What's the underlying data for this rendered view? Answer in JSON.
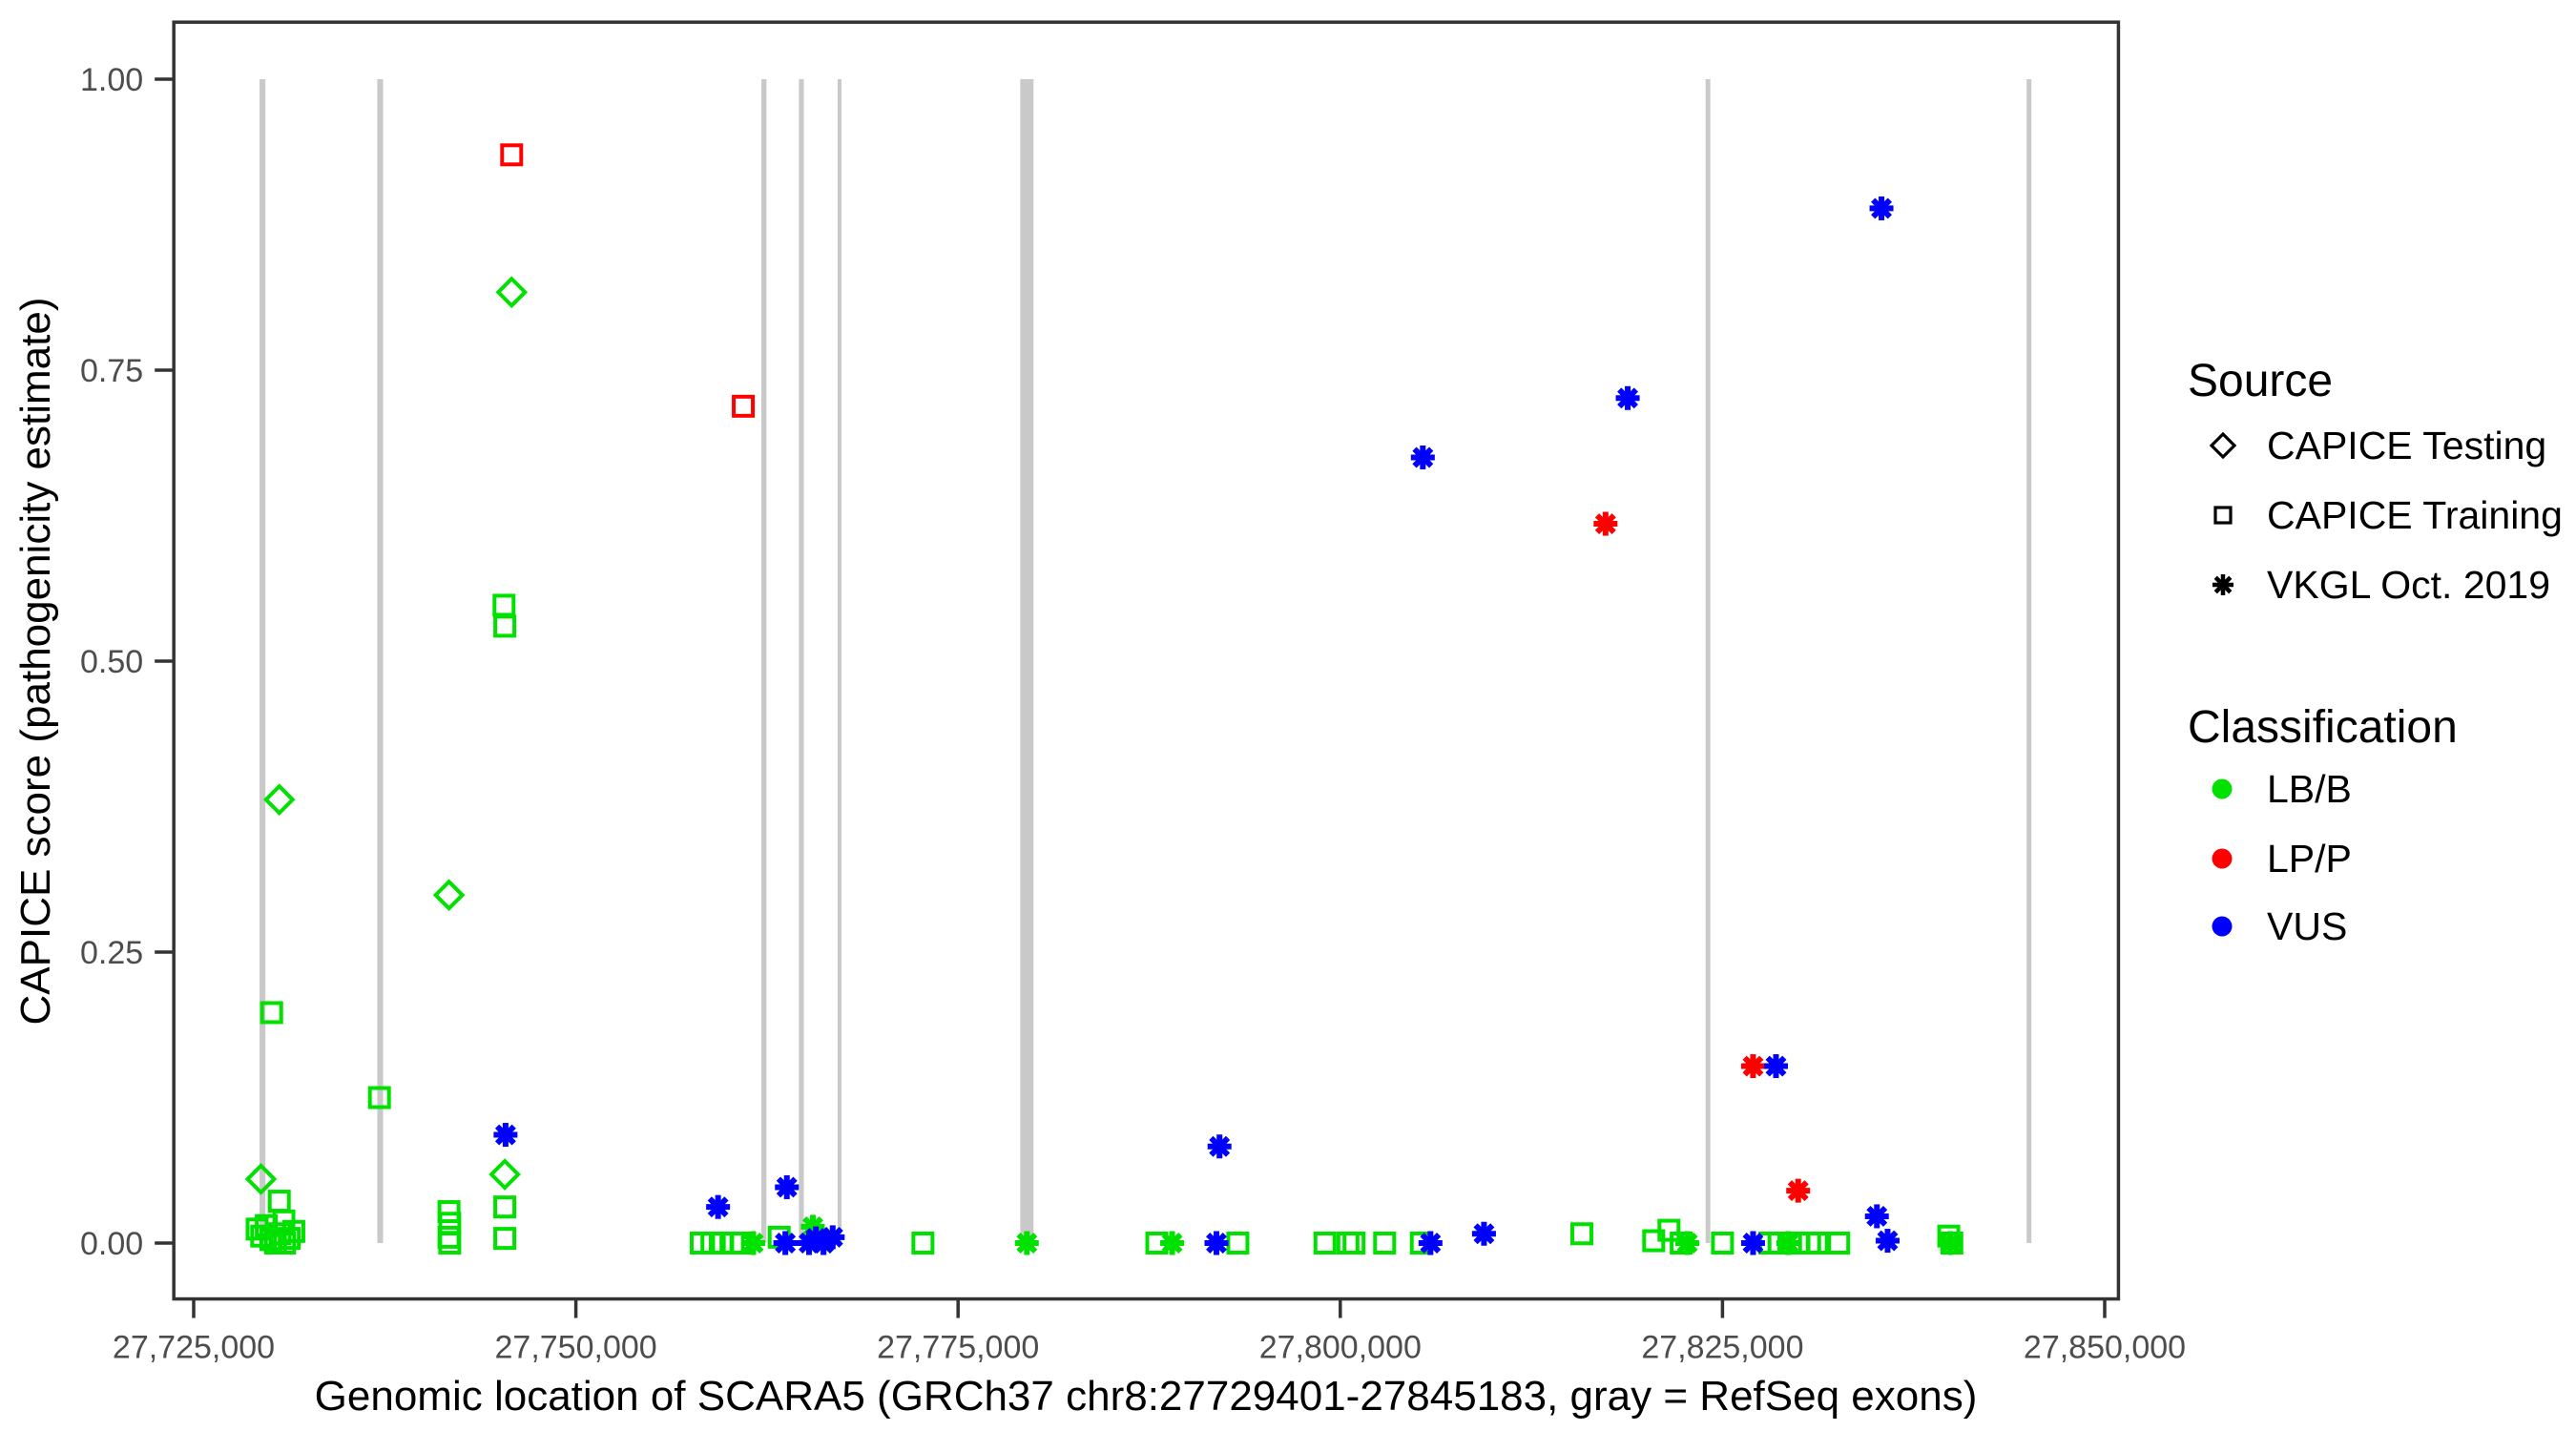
{
  "page": {
    "background": "#FFFFFF"
  },
  "colors": {
    "lbb": "#00E100",
    "lpp": "#FF0000",
    "vus": "#0000FF",
    "exon_gray": "#C9C9C9",
    "axis_text": "#4D4D4D",
    "panel_border": "#333333",
    "legend_marker": "#000000"
  },
  "legend": {
    "source": {
      "title": "Source",
      "items": [
        {
          "label": "CAPICE Testing",
          "marker": "diamond"
        },
        {
          "label": "CAPICE Training",
          "marker": "square"
        },
        {
          "label": "VKGL Oct. 2019",
          "marker": "asterisk"
        }
      ]
    },
    "classification": {
      "title": "Classification",
      "items": [
        {
          "label": "LB/B",
          "color": "#00E100"
        },
        {
          "label": "LP/P",
          "color": "#FF0000"
        },
        {
          "label": "VUS",
          "color": "#0000FF"
        }
      ]
    }
  },
  "chart_data": {
    "type": "scatter",
    "title": "",
    "xlabel": "Genomic location of SCARA5 (GRCh37 chr8:27729401-27845183, gray = RefSeq exons)",
    "ylabel": "CAPICE score (pathogenicity estimate)",
    "xlim": [
      27723700,
      27850900
    ],
    "ylim": [
      -0.048,
      1.049
    ],
    "grid": false,
    "legend_position": "right",
    "x_ticks": [
      {
        "value": 27725000,
        "label": "27,725,000"
      },
      {
        "value": 27750000,
        "label": "27,750,000"
      },
      {
        "value": 27775000,
        "label": "27,775,000"
      },
      {
        "value": 27800000,
        "label": "27,800,000"
      },
      {
        "value": 27825000,
        "label": "27,825,000"
      },
      {
        "value": 27850000,
        "label": "27,850,000"
      }
    ],
    "y_ticks": [
      {
        "value": 0.0,
        "label": "0.00"
      },
      {
        "value": 0.25,
        "label": "0.25"
      },
      {
        "value": 0.5,
        "label": "0.50"
      },
      {
        "value": 0.75,
        "label": "0.75"
      },
      {
        "value": 1.0,
        "label": "1.00"
      }
    ],
    "exons_note": "gray vertical bars = RefSeq exons",
    "exons": [
      {
        "pos": 27729500,
        "width_bp": 380
      },
      {
        "pos": 27737200,
        "width_bp": 380
      },
      {
        "pos": 27762300,
        "width_bp": 330
      },
      {
        "pos": 27764750,
        "width_bp": 320
      },
      {
        "pos": 27767250,
        "width_bp": 260
      },
      {
        "pos": 27779500,
        "width_bp": 870
      },
      {
        "pos": 27824050,
        "width_bp": 310
      },
      {
        "pos": 27845050,
        "width_bp": 310
      }
    ],
    "series": [
      {
        "name": "CAPICE Testing | LB/B",
        "source": "CAPICE Testing",
        "classification": "LB/B",
        "marker": "diamond",
        "color": "#00E100",
        "points": [
          [
            27729400,
            0.055
          ],
          [
            27730600,
            0.381
          ],
          [
            27741700,
            0.299
          ],
          [
            27745350,
            0.059
          ],
          [
            27745800,
            0.817
          ]
        ]
      },
      {
        "name": "CAPICE Training | LB/B",
        "source": "CAPICE Training",
        "classification": "LB/B",
        "marker": "square",
        "color": "#00E100",
        "points": [
          [
            27729150,
            0.012
          ],
          [
            27729450,
            0.006
          ],
          [
            27729750,
            0.015
          ],
          [
            27730050,
            0.003
          ],
          [
            27730350,
            0.0
          ],
          [
            27730650,
            0.008
          ],
          [
            27730950,
            0.0
          ],
          [
            27731250,
            0.004
          ],
          [
            27731550,
            0.01
          ],
          [
            27730600,
            0.036
          ],
          [
            27730900,
            0.019
          ],
          [
            27730100,
            0.198
          ],
          [
            27737150,
            0.125
          ],
          [
            27741700,
            0.027
          ],
          [
            27741750,
            0.017
          ],
          [
            27741700,
            0.005
          ],
          [
            27741750,
            0.0
          ],
          [
            27745300,
            0.548
          ],
          [
            27745350,
            0.53
          ],
          [
            27745350,
            0.031
          ],
          [
            27745350,
            0.004
          ],
          [
            27758200,
            0.0
          ],
          [
            27758900,
            0.0
          ],
          [
            27759600,
            0.0
          ],
          [
            27760300,
            0.0
          ],
          [
            27760800,
            0.0
          ],
          [
            27763300,
            0.005
          ],
          [
            27772700,
            0.0
          ],
          [
            27788000,
            0.0
          ],
          [
            27793300,
            0.0
          ],
          [
            27799000,
            0.0
          ],
          [
            27800500,
            0.0
          ],
          [
            27800900,
            0.0
          ],
          [
            27802900,
            0.0
          ],
          [
            27805300,
            0.0
          ],
          [
            27815800,
            0.008
          ],
          [
            27820500,
            0.002
          ],
          [
            27821500,
            0.011
          ],
          [
            27822300,
            0.0
          ],
          [
            27825000,
            0.0
          ],
          [
            27828100,
            0.0
          ],
          [
            27828700,
            0.0
          ],
          [
            27830000,
            0.0
          ],
          [
            27830700,
            0.0
          ],
          [
            27831200,
            0.0
          ],
          [
            27832600,
            0.0
          ],
          [
            27839800,
            0.006
          ],
          [
            27840000,
            0.0
          ]
        ]
      },
      {
        "name": "CAPICE Training | LP/P",
        "source": "CAPICE Training",
        "classification": "LP/P",
        "marker": "square",
        "color": "#FF0000",
        "points": [
          [
            27745800,
            0.935
          ],
          [
            27760950,
            0.719
          ]
        ]
      },
      {
        "name": "VKGL Oct. 2019 | LB/B",
        "source": "VKGL Oct. 2019",
        "classification": "LB/B",
        "marker": "asterisk",
        "color": "#00E100",
        "points": [
          [
            27761600,
            0.0
          ],
          [
            27765500,
            0.014
          ],
          [
            27766200,
            0.0
          ],
          [
            27779500,
            0.0
          ],
          [
            27789000,
            0.0
          ],
          [
            27822700,
            0.0
          ],
          [
            27829300,
            0.0
          ],
          [
            27839900,
            0.0
          ]
        ]
      },
      {
        "name": "VKGL Oct. 2019 | LP/P",
        "source": "VKGL Oct. 2019",
        "classification": "LP/P",
        "marker": "asterisk",
        "color": "#FF0000",
        "points": [
          [
            27817350,
            0.618
          ],
          [
            27827000,
            0.152
          ],
          [
            27829950,
            0.045
          ]
        ]
      },
      {
        "name": "VKGL Oct. 2019 | VUS",
        "source": "VKGL Oct. 2019",
        "classification": "VUS",
        "marker": "asterisk",
        "color": "#0000FF",
        "points": [
          [
            27745400,
            0.093
          ],
          [
            27759300,
            0.031
          ],
          [
            27763700,
            0.0
          ],
          [
            27763800,
            0.048
          ],
          [
            27765250,
            0.0
          ],
          [
            27765700,
            0.004
          ],
          [
            27766200,
            0.0
          ],
          [
            27766800,
            0.005
          ],
          [
            27791900,
            0.0
          ],
          [
            27792100,
            0.083
          ],
          [
            27805400,
            0.675
          ],
          [
            27805900,
            0.0
          ],
          [
            27809400,
            0.008
          ],
          [
            27818800,
            0.726
          ],
          [
            27827000,
            0.0
          ],
          [
            27828500,
            0.152
          ],
          [
            27835100,
            0.023
          ],
          [
            27835400,
            0.889
          ],
          [
            27835800,
            0.002
          ]
        ]
      }
    ]
  }
}
